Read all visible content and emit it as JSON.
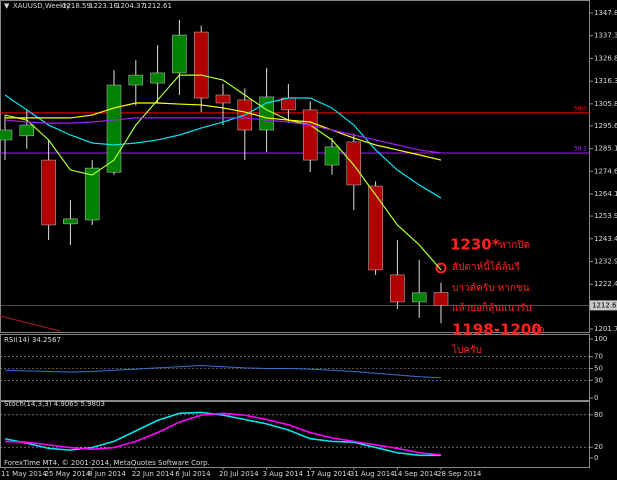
{
  "chart_data": [
    {
      "type": "candlestick",
      "title": "XAUUSD,Weekly",
      "categories": [
        "11 May 2014",
        null,
        "25 May 2014",
        null,
        "8 Jun 2014",
        null,
        "22 Jun 2014",
        null,
        "6 Jul 2014",
        null,
        "20 Jul 2014",
        null,
        "3 Aug 2014",
        null,
        "17 Aug 2014",
        null,
        "31 Aug 2014",
        null,
        "14 Sep 2014",
        null,
        "28 Sep 2014"
      ],
      "open": [
        1289.1,
        1291.0,
        1279.8,
        1250.3,
        1252.1,
        1274.2,
        1314.5,
        1315.4,
        1320.1,
        1339.0,
        1309.9,
        1307.6,
        1293.7,
        1308.5,
        1303.0,
        1277.5,
        1288.2,
        1267.8,
        1226.7,
        1214.2,
        1218.59
      ],
      "high": [
        1300.6,
        1303.0,
        1289.1,
        1261.3,
        1279.8,
        1321.4,
        1326.0,
        1333.0,
        1344.6,
        1342.0,
        1315.0,
        1313.0,
        1322.4,
        1315.0,
        1307.0,
        1290.0,
        1292.0,
        1270.0,
        1242.8,
        1233.6,
        1223.16
      ],
      "low": [
        1279.8,
        1285.0,
        1242.8,
        1240.5,
        1249.8,
        1272.9,
        1305.0,
        1306.0,
        1309.9,
        1302.0,
        1296.0,
        1279.8,
        1283.5,
        1297.0,
        1274.3,
        1273.0,
        1256.7,
        1226.7,
        1211.0,
        1206.8,
        1204.37
      ],
      "close": [
        1293.7,
        1296.0,
        1249.8,
        1252.6,
        1276.1,
        1314.5,
        1319.1,
        1320.1,
        1337.6,
        1308.5,
        1306.2,
        1293.7,
        1309.0,
        1303.0,
        1279.8,
        1285.9,
        1268.3,
        1229.0,
        1214.2,
        1218.4,
        1212.61
      ],
      "up_color": "#008000",
      "down_color": "#b00000",
      "lines": [
        {
          "color": "#00e5ee",
          "values": [
            1309.9,
            1303.0,
            1296.0,
            1291.4,
            1287.7,
            1286.8,
            1287.7,
            1289.1,
            1291.4,
            1294.6,
            1297.4,
            1300.6,
            1306.2,
            1308.5,
            1308.5,
            1303.9,
            1296.0,
            1284.5,
            1275.2,
            1268.3,
            1262.3
          ]
        },
        {
          "color": "#adff2f",
          "values": [
            1300.6,
            1298.3,
            1289.1,
            1275.2,
            1272.9,
            1279.8,
            1296.0,
            1307.6,
            1319.1,
            1319.1,
            1316.8,
            1309.9,
            1303.0,
            1298.3,
            1296.0,
            1289.1,
            1277.5,
            1263.7,
            1249.8,
            1240.6,
            1229.0
          ]
        },
        {
          "color": "#ffff00",
          "values": [
            1299.3,
            1299.3,
            1299.3,
            1299.3,
            1300.6,
            1303.9,
            1306.2,
            1306.2,
            1305.7,
            1305.3,
            1303.9,
            1302.0,
            1299.3,
            1298.3,
            1297.4,
            1293.7,
            1290.0,
            1286.8,
            1284.5,
            1282.2,
            1279.8
          ]
        },
        {
          "color": "#a020f0",
          "values": [
            1298.3,
            1297.4,
            1296.9,
            1296.9,
            1297.4,
            1298.3,
            1299.3,
            1299.3,
            1299.3,
            1299.3,
            1299.3,
            1299.3,
            1298.3,
            1297.4,
            1296.0,
            1293.7,
            1291.4,
            1289.1,
            1286.8,
            1284.5,
            1283.1
          ]
        }
      ],
      "levels": [
        {
          "label": "50.0",
          "value": 1301.6,
          "color": "#ff0000"
        },
        {
          "label": "38.2",
          "value": 1283.1,
          "color": "#a020f0"
        }
      ],
      "annotation": [
        "1230*",
        "หากปิด",
        "สัปดาห์นี้ได้ลุ้นรี",
        "บาวด์ครับ  หากชน",
        "แล้วย่อก็ลุ้นแนวรับ",
        "1198-1200",
        "ต่อ",
        "ไปครับ"
      ],
      "annotation_color": "#ff2020",
      "ylim": [
        1200.3,
        1352.9
      ],
      "yticks": [
        {
          "value": 1347.8,
          "label": "1347.80"
        },
        {
          "value": 1337.3,
          "label": "1337.30"
        },
        {
          "value": 1326.8,
          "label": "1326.80"
        },
        {
          "value": 1316.3,
          "label": "1316.30"
        },
        {
          "value": 1305.8,
          "label": "1305.80"
        },
        {
          "value": 1295.6,
          "label": "1295.60"
        },
        {
          "value": 1285.1,
          "label": "1285.10"
        },
        {
          "value": 1274.6,
          "label": "1274.60"
        },
        {
          "value": 1264.1,
          "label": "1264.10"
        },
        {
          "value": 1253.9,
          "label": "1253.90"
        },
        {
          "value": 1243.4,
          "label": "1243.40"
        },
        {
          "value": 1232.9,
          "label": "1232.90"
        },
        {
          "value": 1222.4,
          "label": "1222.40"
        },
        {
          "value": 1201.7,
          "label": "1201.70"
        }
      ]
    },
    {
      "type": "line",
      "title": "RSI(14) 34.2567",
      "color": "#3b6fd4",
      "values": [
        47,
        46,
        45,
        44,
        45,
        47,
        49,
        51,
        53,
        55,
        53,
        51,
        50,
        50,
        49,
        47,
        45,
        42,
        39,
        36,
        34.3
      ],
      "ylim": [
        0,
        100
      ],
      "yticks": [
        0,
        30,
        50,
        70,
        100
      ],
      "levels": [
        30,
        50,
        70
      ]
    },
    {
      "type": "line",
      "title": "Stoch(14,3,3) 4.9065 5.9803",
      "lines": [
        {
          "color": "#00e5ee",
          "values": [
            35.7,
            27.6,
            17.8,
            14.6,
            19.4,
            30.8,
            50.2,
            69.7,
            82.7,
            84.3,
            79.4,
            71.3,
            63.2,
            51.9,
            35.7,
            30.8,
            29.2,
            19.4,
            9.7,
            4.9,
            4.9
          ]
        },
        {
          "color": "#ff00ff",
          "values": [
            30.8,
            29.2,
            24.3,
            19.4,
            16.2,
            19.4,
            30.8,
            47.0,
            66.5,
            79.4,
            82.7,
            79.4,
            71.3,
            61.6,
            47.0,
            37.3,
            30.8,
            24.3,
            17.8,
            9.7,
            6.0
          ]
        }
      ],
      "ylim": [
        0,
        100
      ],
      "yticks": [
        0,
        20,
        80
      ],
      "levels": [
        20,
        80
      ]
    }
  ],
  "footer": "ForexTime MT4, © 2001-2014, MetaQuotes Software Corp."
}
